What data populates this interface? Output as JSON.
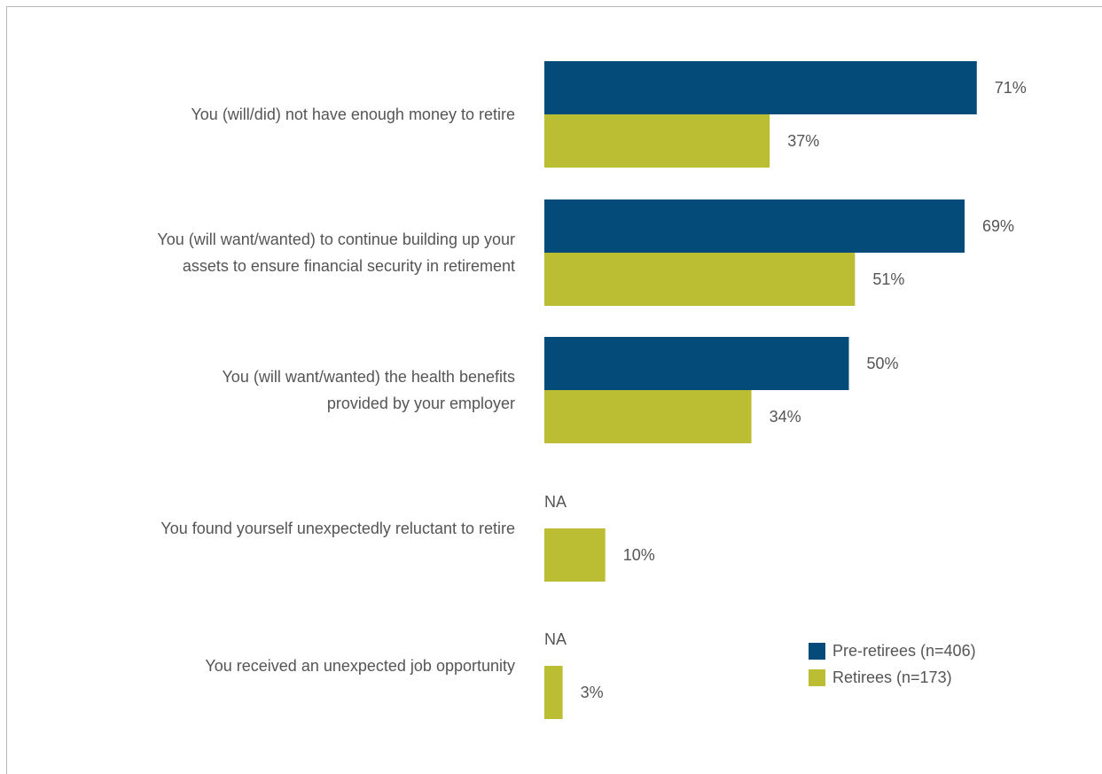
{
  "chart_data": {
    "type": "bar",
    "orientation": "horizontal",
    "categories": [
      [
        "You (will/did) not have enough money to retire"
      ],
      [
        "You (will want/wanted) to continue building up your",
        "assets to ensure financial security in retirement"
      ],
      [
        "You (will want/wanted) the health benefits",
        "provided by your employer"
      ],
      [
        "You found yourself unexpectedly reluctant to retire"
      ],
      [
        "You received an unexpected job opportunity"
      ]
    ],
    "series": [
      {
        "name": "Pre-retirees (n=406)",
        "color": "#054b79",
        "values": [
          71,
          69,
          50,
          null,
          null
        ],
        "labels": [
          "71%",
          "69%",
          "50%",
          "NA",
          "NA"
        ]
      },
      {
        "name": "Retirees (n=173)",
        "color": "#bbbe32",
        "values": [
          37,
          51,
          34,
          10,
          3
        ],
        "labels": [
          "37%",
          "51%",
          "34%",
          "10%",
          "3%"
        ]
      }
    ],
    "legend_position": "bottom-right",
    "xlim": [
      0,
      100
    ],
    "grid": false
  }
}
